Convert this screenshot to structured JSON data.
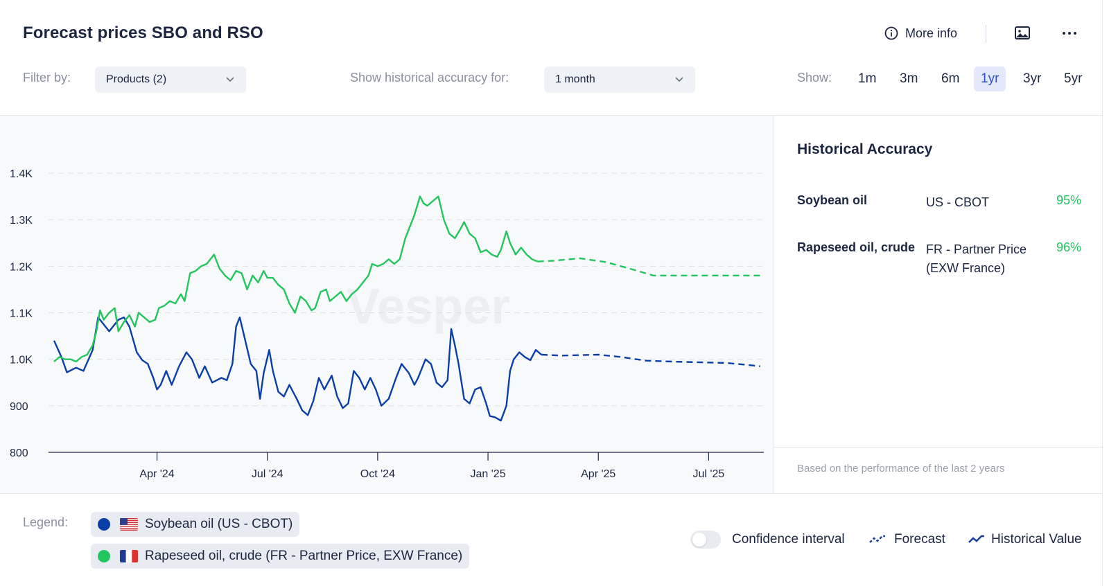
{
  "header": {
    "title": "Forecast prices SBO and RSO",
    "more_info": "More info"
  },
  "filters": {
    "filter_label": "Filter by:",
    "products_value": "Products (2)",
    "accuracy_label": "Show historical accuracy for:",
    "accuracy_value": "1 month",
    "show_label": "Show:",
    "periods": [
      "1m",
      "3m",
      "6m",
      "1yr",
      "3yr",
      "5yr"
    ],
    "active_period": "1yr"
  },
  "colors": {
    "soybean": "#0b3fa8",
    "rapeseed": "#22c55e",
    "accent": "#2b50c7"
  },
  "chart_data": {
    "type": "line",
    "watermark": "Vesper",
    "y_ticks": [
      "800",
      "900",
      "1.0K",
      "1.1K",
      "1.2K",
      "1.3K",
      "1.4K"
    ],
    "y_tick_values": [
      800,
      900,
      1000,
      1100,
      1200,
      1300,
      1400
    ],
    "ylim": [
      800,
      1400
    ],
    "x_ticks": [
      "Apr '24",
      "Jul '24",
      "Oct '24",
      "Jan '25",
      "Apr '25",
      "Jul '25"
    ],
    "x_tick_months": [
      2,
      5,
      8,
      11,
      14,
      17
    ],
    "xlim": [
      -0.95,
      18.5
    ],
    "series": [
      {
        "name": "Soybean oil (US - CBOT)",
        "color": "#0b3fa8",
        "historical": [
          [
            -0.8,
            1040
          ],
          [
            -0.6,
            1005
          ],
          [
            -0.45,
            972
          ],
          [
            -0.2,
            982
          ],
          [
            0,
            975
          ],
          [
            0.25,
            1020
          ],
          [
            0.4,
            1090
          ],
          [
            0.55,
            1075
          ],
          [
            0.7,
            1060
          ],
          [
            0.95,
            1085
          ],
          [
            1.1,
            1090
          ],
          [
            1.25,
            1070
          ],
          [
            1.45,
            1015
          ],
          [
            1.6,
            998
          ],
          [
            1.75,
            990
          ],
          [
            1.9,
            960
          ],
          [
            2.0,
            935
          ],
          [
            2.1,
            945
          ],
          [
            2.25,
            975
          ],
          [
            2.4,
            945
          ],
          [
            2.6,
            985
          ],
          [
            2.8,
            1015
          ],
          [
            2.95,
            1000
          ],
          [
            3.15,
            960
          ],
          [
            3.3,
            985
          ],
          [
            3.5,
            950
          ],
          [
            3.75,
            960
          ],
          [
            3.9,
            955
          ],
          [
            4.05,
            990
          ],
          [
            4.15,
            1070
          ],
          [
            4.25,
            1090
          ],
          [
            4.4,
            1040
          ],
          [
            4.55,
            990
          ],
          [
            4.7,
            975
          ],
          [
            4.8,
            915
          ],
          [
            4.9,
            970
          ],
          [
            5.05,
            1020
          ],
          [
            5.15,
            975
          ],
          [
            5.3,
            930
          ],
          [
            5.45,
            920
          ],
          [
            5.6,
            945
          ],
          [
            5.8,
            915
          ],
          [
            5.95,
            890
          ],
          [
            6.1,
            880
          ],
          [
            6.25,
            910
          ],
          [
            6.4,
            960
          ],
          [
            6.55,
            935
          ],
          [
            6.75,
            965
          ],
          [
            6.9,
            920
          ],
          [
            7.05,
            895
          ],
          [
            7.2,
            905
          ],
          [
            7.35,
            975
          ],
          [
            7.5,
            960
          ],
          [
            7.65,
            935
          ],
          [
            7.8,
            960
          ],
          [
            7.95,
            935
          ],
          [
            8.1,
            900
          ],
          [
            8.3,
            915
          ],
          [
            8.5,
            960
          ],
          [
            8.65,
            990
          ],
          [
            8.85,
            970
          ],
          [
            9.0,
            945
          ],
          [
            9.1,
            960
          ],
          [
            9.3,
            1000
          ],
          [
            9.45,
            990
          ],
          [
            9.6,
            950
          ],
          [
            9.75,
            940
          ],
          [
            9.9,
            955
          ],
          [
            10.0,
            1065
          ],
          [
            10.1,
            1030
          ],
          [
            10.2,
            990
          ],
          [
            10.35,
            915
          ],
          [
            10.5,
            905
          ],
          [
            10.65,
            935
          ],
          [
            10.8,
            940
          ],
          [
            10.95,
            905
          ],
          [
            11.05,
            878
          ],
          [
            11.2,
            875
          ],
          [
            11.35,
            868
          ],
          [
            11.5,
            900
          ],
          [
            11.6,
            975
          ],
          [
            11.7,
            1000
          ],
          [
            11.85,
            1015
          ],
          [
            12.0,
            1005
          ],
          [
            12.15,
            998
          ],
          [
            12.3,
            1020
          ],
          [
            12.45,
            1010
          ]
        ],
        "forecast": [
          [
            12.45,
            1010
          ],
          [
            13.0,
            1008
          ],
          [
            14.0,
            1010
          ],
          [
            14.6,
            1005
          ],
          [
            15.3,
            997
          ],
          [
            16.0,
            995
          ],
          [
            17.5,
            992
          ],
          [
            18.4,
            985
          ]
        ]
      },
      {
        "name": "Rapeseed oil, crude (FR - Partner Price, EXW France)",
        "color": "#22c55e",
        "historical": [
          [
            -0.8,
            995
          ],
          [
            -0.65,
            1005
          ],
          [
            -0.5,
            1000
          ],
          [
            -0.35,
            1000
          ],
          [
            -0.2,
            995
          ],
          [
            -0.05,
            1005
          ],
          [
            0.1,
            1010
          ],
          [
            0.25,
            1030
          ],
          [
            0.35,
            1060
          ],
          [
            0.45,
            1105
          ],
          [
            0.55,
            1085
          ],
          [
            0.7,
            1100
          ],
          [
            0.85,
            1110
          ],
          [
            0.95,
            1060
          ],
          [
            1.1,
            1080
          ],
          [
            1.25,
            1095
          ],
          [
            1.4,
            1070
          ],
          [
            1.5,
            1100
          ],
          [
            1.65,
            1090
          ],
          [
            1.8,
            1080
          ],
          [
            1.95,
            1085
          ],
          [
            2.05,
            1110
          ],
          [
            2.2,
            1115
          ],
          [
            2.35,
            1125
          ],
          [
            2.5,
            1120
          ],
          [
            2.65,
            1140
          ],
          [
            2.75,
            1125
          ],
          [
            2.9,
            1185
          ],
          [
            3.05,
            1190
          ],
          [
            3.2,
            1200
          ],
          [
            3.35,
            1205
          ],
          [
            3.55,
            1225
          ],
          [
            3.7,
            1195
          ],
          [
            3.85,
            1180
          ],
          [
            4.0,
            1170
          ],
          [
            4.15,
            1190
          ],
          [
            4.3,
            1185
          ],
          [
            4.45,
            1150
          ],
          [
            4.6,
            1180
          ],
          [
            4.75,
            1165
          ],
          [
            4.9,
            1190
          ],
          [
            5.0,
            1175
          ],
          [
            5.15,
            1175
          ],
          [
            5.3,
            1160
          ],
          [
            5.45,
            1150
          ],
          [
            5.6,
            1120
          ],
          [
            5.75,
            1100
          ],
          [
            5.9,
            1135
          ],
          [
            6.05,
            1125
          ],
          [
            6.2,
            1105
          ],
          [
            6.3,
            1110
          ],
          [
            6.45,
            1145
          ],
          [
            6.6,
            1150
          ],
          [
            6.7,
            1125
          ],
          [
            6.85,
            1135
          ],
          [
            7.0,
            1145
          ],
          [
            7.15,
            1125
          ],
          [
            7.3,
            1140
          ],
          [
            7.45,
            1150
          ],
          [
            7.6,
            1165
          ],
          [
            7.75,
            1180
          ],
          [
            7.85,
            1205
          ],
          [
            8.0,
            1200
          ],
          [
            8.15,
            1205
          ],
          [
            8.3,
            1215
          ],
          [
            8.45,
            1205
          ],
          [
            8.6,
            1215
          ],
          [
            8.75,
            1260
          ],
          [
            8.9,
            1290
          ],
          [
            9.0,
            1310
          ],
          [
            9.15,
            1350
          ],
          [
            9.25,
            1335
          ],
          [
            9.35,
            1330
          ],
          [
            9.5,
            1340
          ],
          [
            9.65,
            1350
          ],
          [
            9.8,
            1300
          ],
          [
            9.95,
            1270
          ],
          [
            10.1,
            1260
          ],
          [
            10.25,
            1280
          ],
          [
            10.35,
            1295
          ],
          [
            10.5,
            1270
          ],
          [
            10.65,
            1260
          ],
          [
            10.8,
            1230
          ],
          [
            10.95,
            1235
          ],
          [
            11.1,
            1225
          ],
          [
            11.25,
            1220
          ],
          [
            11.35,
            1235
          ],
          [
            11.5,
            1275
          ],
          [
            11.6,
            1250
          ],
          [
            11.75,
            1225
          ],
          [
            11.9,
            1240
          ],
          [
            12.05,
            1225
          ],
          [
            12.2,
            1215
          ],
          [
            12.35,
            1210
          ]
        ],
        "forecast": [
          [
            12.35,
            1210
          ],
          [
            12.8,
            1212
          ],
          [
            13.5,
            1217
          ],
          [
            14.2,
            1209
          ],
          [
            14.8,
            1196
          ],
          [
            15.5,
            1180
          ],
          [
            16.3,
            1180
          ],
          [
            18.4,
            1180
          ]
        ]
      }
    ]
  },
  "accuracy": {
    "title": "Historical Accuracy",
    "rows": [
      {
        "product": "Soybean oil",
        "market": "US - CBOT",
        "percent": "95%"
      },
      {
        "product": "Rapeseed oil, crude",
        "market": "FR - Partner Price (EXW France)",
        "percent": "96%"
      }
    ],
    "note": "Based on the performance of the last 2 years"
  },
  "legend": {
    "label": "Legend:",
    "items": [
      "Soybean oil (US - CBOT)",
      "Rapeseed oil, crude (FR - Partner Price, EXW France)"
    ],
    "confidence": "Confidence interval",
    "forecast": "Forecast",
    "historical": "Historical Value"
  }
}
